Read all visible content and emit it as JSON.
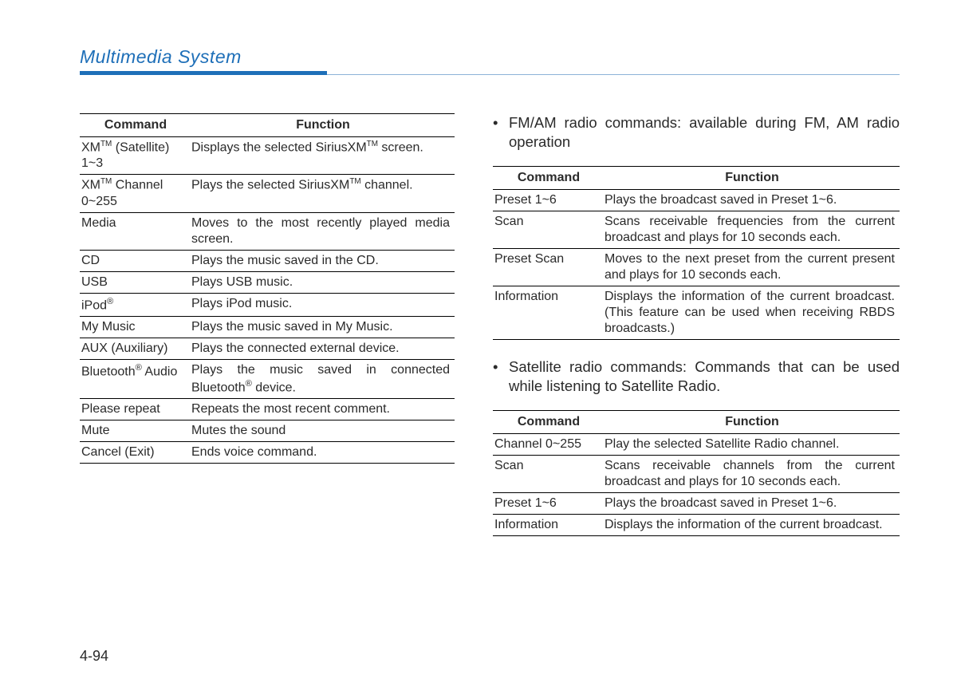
{
  "colors": {
    "brand_blue": "#1e6fb8",
    "rule_light": "#8cb3d7",
    "text": "#2a2a2a",
    "bg": "#ffffff"
  },
  "typography": {
    "body_family": "Arial",
    "body_size_pt": 12,
    "title_size_pt": 17
  },
  "page_number": "4-94",
  "section_title": "Multimedia System",
  "left_table": {
    "headers": {
      "command": "Command",
      "function": "Function"
    },
    "rows": [
      {
        "command_html": "XM<sup class='tm'>TM</sup> (Satellite) 1~3",
        "function_html": "Displays the selected SiriusXM<sup class='tm'>TM</sup> screen."
      },
      {
        "command_html": "XM<sup class='tm'>TM</sup> Channel 0~255",
        "function_html": "Plays the selected SiriusXM<sup class='tm'>TM</sup> channel."
      },
      {
        "command_html": "Media",
        "function_html": "Moves to the most recently played media screen."
      },
      {
        "command_html": "CD",
        "function_html": "Plays the music saved in the CD."
      },
      {
        "command_html": "USB",
        "function_html": "Plays USB music."
      },
      {
        "command_html": "iPod<sup class='reg'>®</sup>",
        "function_html": "Plays iPod music."
      },
      {
        "command_html": "My Music",
        "function_html": "Plays the music saved in My Music."
      },
      {
        "command_html": "AUX (Auxiliary)",
        "function_html": "Plays the connected external device."
      },
      {
        "command_html": "Bluetooth<sup class='reg'>®</sup> Audio",
        "function_html": "Plays the music saved in connected Bluetooth<sup class='reg'>®</sup> device."
      },
      {
        "command_html": "Please repeat",
        "function_html": "Repeats the most recent comment."
      },
      {
        "command_html": "Mute",
        "function_html": "Mutes the sound"
      },
      {
        "command_html": "Cancel (Exit)",
        "function_html": "Ends voice command."
      }
    ]
  },
  "fm_am": {
    "intro": "FM/AM radio commands: available during FM, AM radio operation",
    "headers": {
      "command": "Command",
      "function": "Function"
    },
    "rows": [
      {
        "command": "Preset 1~6",
        "function": "Plays the broadcast saved in Preset 1~6."
      },
      {
        "command": "Scan",
        "function": "Scans receivable frequencies from the current broadcast and plays for 10 seconds each."
      },
      {
        "command": "Preset Scan",
        "function": "Moves to the next preset from the current present and plays for 10 seconds each."
      },
      {
        "command": "Information",
        "function": "Displays the information of the current broadcast.(This feature can be used when receiving RBDS broadcasts.)"
      }
    ]
  },
  "satellite": {
    "intro": "Satellite radio commands: Commands that can be used while listening to Satellite Radio.",
    "headers": {
      "command": "Command",
      "function": "Function"
    },
    "rows": [
      {
        "command": "Channel 0~255",
        "function": "Play the selected Satellite Radio channel."
      },
      {
        "command": "Scan",
        "function": "Scans receivable channels from the current broadcast and plays for 10 seconds each."
      },
      {
        "command": "Preset 1~6",
        "function": "Plays the broadcast saved in Preset 1~6."
      },
      {
        "command": "Information",
        "function": "Displays the information of the current broadcast."
      }
    ]
  }
}
